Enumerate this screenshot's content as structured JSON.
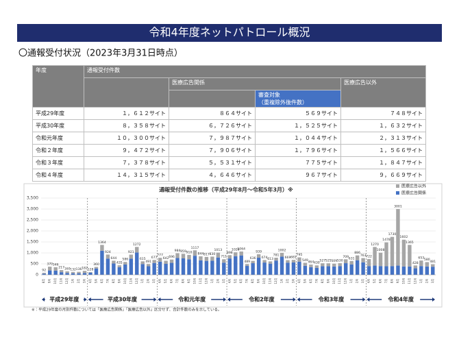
{
  "header": {
    "title": "令和4年度ネットパトロール概況",
    "subtitle": "〇通報受付状況（2023年3月31日時点）"
  },
  "table": {
    "head": {
      "year": "年度",
      "total": "通報受付件数",
      "ad": "医療広告関係",
      "review": "審査対象\n（重複除外後件数）",
      "other": "医療広告以外"
    },
    "rows": [
      [
        "平成29年度",
        "１，６１２サイト",
        "８６４サイト",
        "５６９サイト",
        "７４８サイト"
      ],
      [
        "平成30年度",
        "８，３５８サイト",
        "６，７２６サイト",
        "１，５２５サイト",
        "１，６３２サイト"
      ],
      [
        "令和元年度",
        "１０，３００サイト",
        "７，９８７サイト",
        "１，０４４サイト",
        "２，３１３サイト"
      ],
      [
        "令和２年度",
        "９，４７２サイト",
        "７，９０６サイト",
        "１，７９６サイト",
        "１，５６６サイト"
      ],
      [
        "令和３年度",
        "７，３７８サイト",
        "５，５３１サイト",
        "７７５サイト",
        "１，８４７サイト"
      ],
      [
        "令和４年度",
        "１４，３１５サイト",
        "４，６４６サイト",
        "９６７サイト",
        "９，６６９サイト"
      ]
    ]
  },
  "chart_data": {
    "type": "stacked_bar",
    "title": "通報受付件数の推移（平成29年8月～令和5年3月）※",
    "categories": [
      "8月",
      "9月",
      "10月",
      "11月",
      "12月",
      "1月",
      "2月",
      "3月",
      "4月",
      "5月",
      "6月",
      "7月",
      "8月",
      "9月",
      "10月",
      "11月",
      "12月",
      "1月",
      "2月",
      "3月",
      "4月",
      "5月",
      "6月",
      "7月",
      "8月",
      "9月",
      "10月",
      "11月",
      "12月",
      "1月",
      "2月",
      "3月",
      "4月",
      "5月",
      "6月",
      "7月",
      "8月",
      "9月",
      "10月",
      "11月",
      "12月",
      "1月",
      "2月",
      "3月",
      "4月",
      "5月",
      "6月",
      "7月",
      "8月",
      "9月",
      "10月",
      "11月",
      "12月",
      "1月",
      "2月",
      "3月",
      "4月",
      "5月",
      "6月",
      "7月",
      "8月",
      "9月",
      "10月",
      "11月",
      "12月",
      "1月",
      "2月",
      "3月"
    ],
    "series": [
      {
        "name": "医療広告関係",
        "color": "#4472c4",
        "values": [
          50,
          200,
          190,
          120,
          85,
          70,
          70,
          80,
          100,
          290,
          1100,
          740,
          515,
          350,
          470,
          740,
          1020,
          490,
          390,
          540,
          600,
          500,
          545,
          765,
          750,
          710,
          870,
          660,
          635,
          645,
          790,
          555,
          745,
          850,
          885,
          405,
          530,
          780,
          560,
          510,
          650,
          830,
          555,
          565,
          600,
          410,
          350,
          320,
          395,
          395,
          380,
          400,
          530,
          475,
          665,
          570,
          400,
          420,
          400,
          390,
          400,
          420,
          380,
          380,
          300,
          400,
          380,
          370
        ]
      },
      {
        "name": "医療広告以外",
        "color": "#a6a6a6",
        "values": [
          42,
          170,
          156,
          97,
          75,
          62,
          66,
          102,
          28,
          70,
          264,
          184,
          129,
          85,
          116,
          181,
          252,
          125,
          101,
          137,
          177,
          142,
          151,
          219,
          209,
          200,
          247,
          184,
          182,
          185,
          223,
          156,
          153,
          176,
          179,
          84,
          106,
          159,
          114,
          103,
          131,
          172,
          114,
          116,
          195,
          139,
          114,
          110,
          132,
          130,
          129,
          130,
          179,
          156,
          221,
          193,
          322,
          850,
          608,
          1088,
          1330,
          2581,
          1222,
          985,
          128,
          253,
          200,
          111
        ]
      }
    ],
    "totals": [
      92,
      370,
      346,
      217,
      160,
      132,
      136,
      182,
      128,
      360,
      1364,
      924,
      644,
      435,
      586,
      921,
      1272,
      615,
      491,
      677,
      777,
      642,
      696,
      984,
      959,
      910,
      1117,
      844,
      817,
      830,
      1013,
      711,
      898,
      1026,
      1064,
      489,
      636,
      939,
      674,
      613,
      781,
      1002,
      669,
      681,
      795,
      549,
      464,
      430,
      527,
      525,
      509,
      530,
      709,
      631,
      886,
      763,
      722,
      1270,
      1008,
      1478,
      1730,
      3001,
      1602,
      1365,
      428,
      653,
      580,
      481
    ],
    "fiscal_years": [
      "平成29年度",
      "平成30年度",
      "令和元年度",
      "令和2年度",
      "令和3年度",
      "令和4年度"
    ],
    "ylim": [
      0,
      3500
    ],
    "yticks": [
      0,
      500,
      {
        "value": 1000,
        "label": "1,000"
      },
      {
        "value": 1500,
        "label": "1,500"
      },
      {
        "value": 2000,
        "label": "2,000"
      },
      {
        "value": 2500,
        "label": "2,500"
      },
      {
        "value": 3000,
        "label": "3,000"
      },
      {
        "value": 3500,
        "label": "3,500"
      }
    ],
    "grid": true,
    "legend": "top-right",
    "note": "※：平成29年度の月別件数については「医療広告関係」「医療広告以外」区分せず、合計件数のみを示している。"
  }
}
